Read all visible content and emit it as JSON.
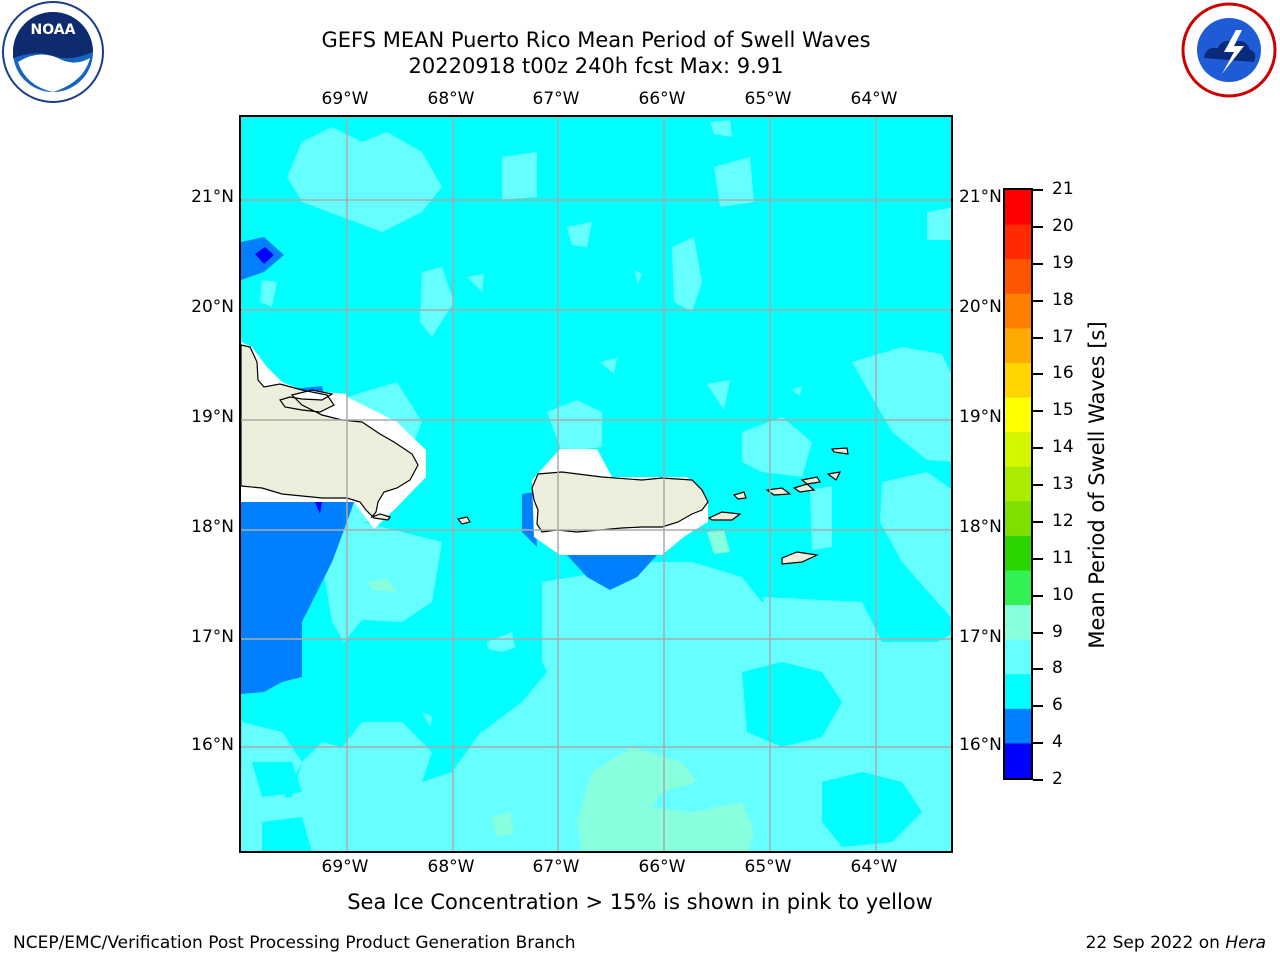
{
  "header": {
    "title_line1": "GEFS MEAN Puerto Rico Mean Period of Swell Waves",
    "title_line2": "20220918 t00z 240h fcst   Max: 9.91"
  },
  "logos": {
    "left": "NOAA",
    "right": "NATIONAL WEATHER SERVICE"
  },
  "axes": {
    "lon_labels": [
      "69°W",
      "68°W",
      "67°W",
      "66°W",
      "65°W",
      "64°W"
    ],
    "lat_labels": [
      "21°N",
      "20°N",
      "19°N",
      "18°N",
      "17°N",
      "16°N"
    ]
  },
  "colorbar": {
    "label": "Mean Period of Swell Waves [s]",
    "ticks": [
      "21",
      "20",
      "19",
      "18",
      "17",
      "16",
      "15",
      "14",
      "13",
      "12",
      "11",
      "10",
      "9",
      "8",
      "6",
      "4",
      "2"
    ],
    "colors_top_to_bottom": [
      "#ff0000",
      "#ff2a00",
      "#ff5500",
      "#ff7f00",
      "#ffaa00",
      "#ffd400",
      "#ffff00",
      "#d4f500",
      "#aaeb00",
      "#7fe000",
      "#2ad600",
      "#33f055",
      "#88ffdd",
      "#66ffff",
      "#00ffff",
      "#0080ff",
      "#0000ff"
    ]
  },
  "map_colors": {
    "background": "#00ffff",
    "band_8_9": "#66ffff",
    "band_9_10": "#88ffdd",
    "band_4_6": "#0080ff",
    "band_2_4": "#0000ff",
    "land": "#eeeedc"
  },
  "note": "Sea Ice Concentration > 15% is shown in pink to yellow",
  "footer": {
    "left": "NCEP/EMC/Verification Post Processing Product Generation Branch",
    "right_date": "22 Sep 2022 on",
    "right_host": "Hera"
  }
}
